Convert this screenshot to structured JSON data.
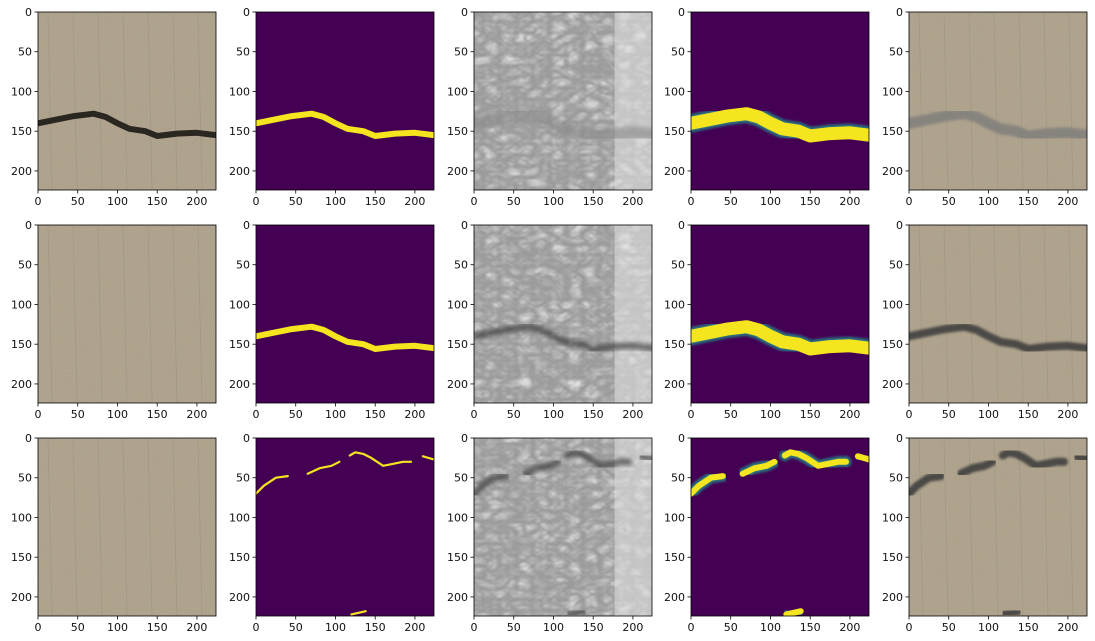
{
  "figure": {
    "rows": 3,
    "cols": 5,
    "image_size": 224,
    "x_ticks": [
      "0",
      "50",
      "100",
      "150",
      "200"
    ],
    "y_ticks": [
      "0",
      "50",
      "100",
      "150",
      "200"
    ],
    "x_tick_values": [
      0,
      50,
      100,
      150,
      200
    ],
    "y_tick_values": [
      0,
      50,
      100,
      150,
      200
    ],
    "panel_kinds": [
      "input-image",
      "ground-truth-mask",
      "perturbation-map",
      "predicted-mask",
      "overlay-image"
    ],
    "crack_traces": [
      [
        [
          0,
          140
        ],
        [
          20,
          136
        ],
        [
          45,
          131
        ],
        [
          70,
          128
        ],
        [
          85,
          132
        ],
        [
          100,
          140
        ],
        [
          115,
          147
        ],
        [
          135,
          150
        ],
        [
          150,
          156
        ],
        [
          175,
          153
        ],
        [
          200,
          152
        ],
        [
          224,
          155
        ]
      ],
      [
        [
          0,
          140
        ],
        [
          20,
          136
        ],
        [
          45,
          131
        ],
        [
          70,
          128
        ],
        [
          85,
          132
        ],
        [
          100,
          140
        ],
        [
          115,
          147
        ],
        [
          135,
          150
        ],
        [
          150,
          156
        ],
        [
          175,
          153
        ],
        [
          200,
          152
        ],
        [
          224,
          155
        ]
      ],
      [
        [
          0,
          70
        ],
        [
          10,
          60
        ],
        [
          25,
          50
        ],
        [
          40,
          48
        ]
      ]
    ],
    "crack_extra_traces": [
      [],
      [],
      [
        [
          65,
          45
        ],
        [
          80,
          38
        ],
        [
          95,
          35
        ],
        [
          105,
          30
        ]
      ],
      [
        [
          118,
          22
        ],
        [
          125,
          18
        ],
        [
          135,
          20
        ],
        [
          145,
          25
        ],
        [
          160,
          35
        ],
        [
          175,
          32
        ],
        [
          185,
          30
        ],
        [
          195,
          30
        ]
      ],
      [
        [
          210,
          23
        ],
        [
          224,
          27
        ]
      ],
      [
        [
          120,
          222
        ],
        [
          138,
          218
        ]
      ]
    ],
    "colors": {
      "mask_background": "#440154",
      "mask_crack": "#f4e51e",
      "mask_edge": "#21918c",
      "concrete": "#b5aa95",
      "crack_dark": "#2a2620"
    }
  }
}
